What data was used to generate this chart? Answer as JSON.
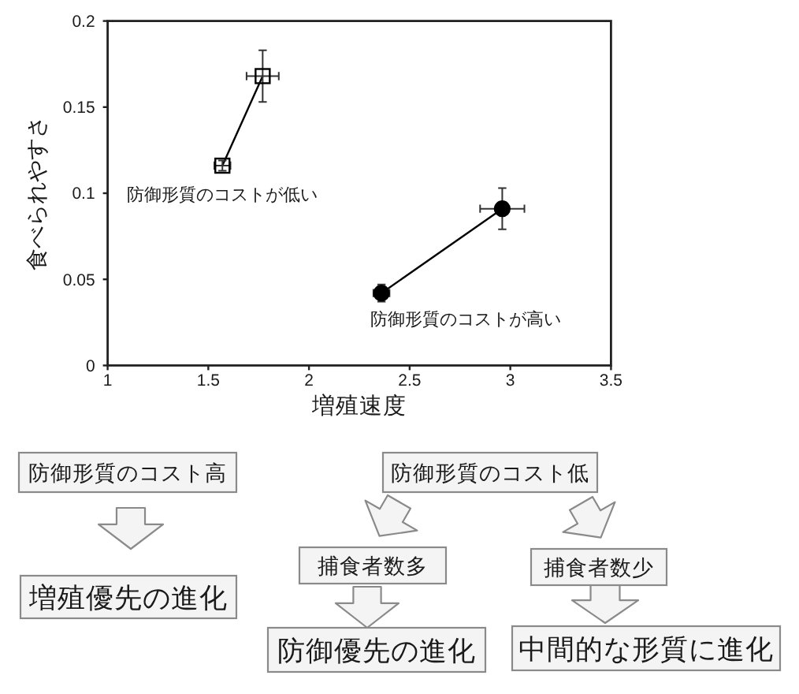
{
  "chart_data": [
    {
      "type": "line",
      "xlabel": "増殖速度",
      "ylabel": "食べられやすさ",
      "xlim": [
        1,
        3.5
      ],
      "xticks": [
        1,
        1.5,
        2,
        2.5,
        3,
        3.5
      ],
      "ylim": [
        0,
        0.2
      ],
      "yticks": [
        0,
        0.05,
        0.1,
        0.15,
        0.2
      ],
      "series": [
        {
          "name": "防御形質のコストが低い",
          "color": "#000000",
          "marker": "square",
          "x": [
            1.57,
            1.77
          ],
          "values": [
            0.116,
            0.168
          ],
          "xerrors": [
            0.04,
            0.08
          ],
          "errors": [
            0.003,
            0.015
          ]
        },
        {
          "name": "防御形質のコストが高い",
          "color": "#000000",
          "marker": "circle",
          "x": [
            2.36,
            2.96
          ],
          "values": [
            0.042,
            0.091
          ],
          "xerrors": [
            0.04,
            0.11
          ],
          "errors": [
            0.005,
            0.012
          ]
        }
      ]
    },
    {
      "type": "other",
      "annotations": [
        "防御形質のコスト高",
        "防御形質のコスト低",
        "捕食者数多",
        "捕食者数少",
        "増殖優先の進化",
        "防御優先の進化",
        "中間的な形質に進化"
      ]
    }
  ]
}
